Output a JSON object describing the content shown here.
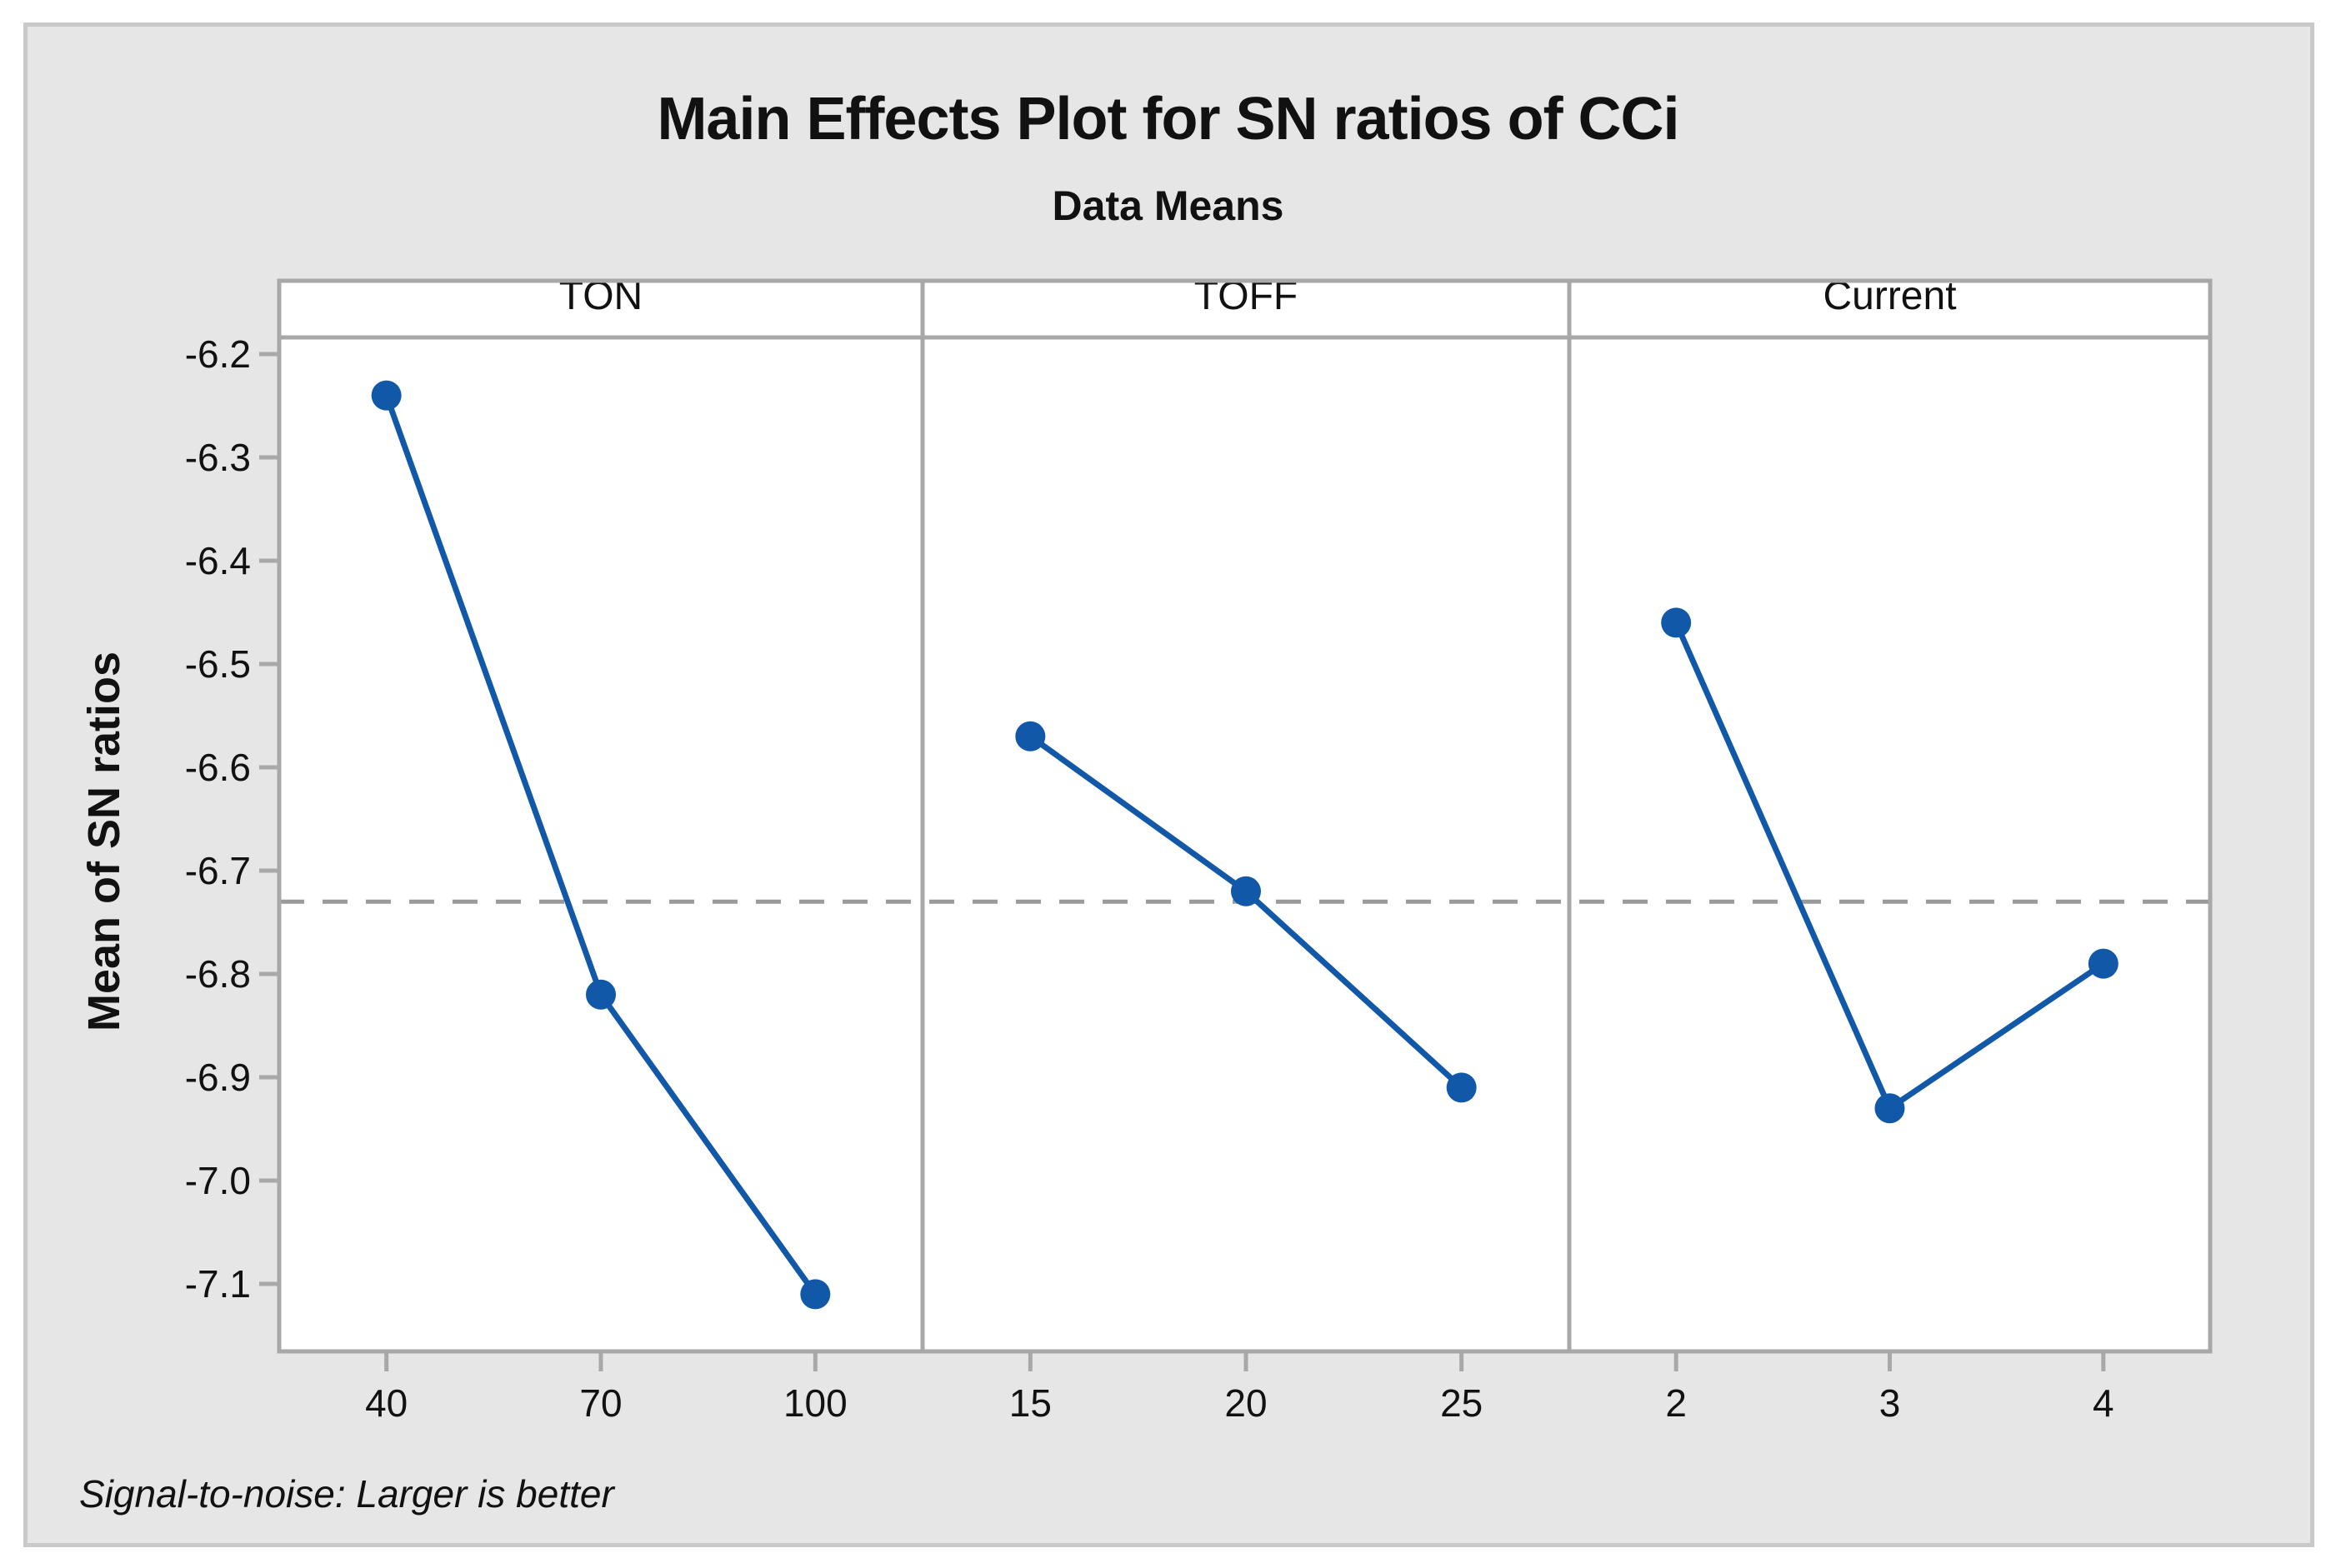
{
  "title": "Main Effects Plot for SN ratios of CCi",
  "subtitle": "Data Means",
  "y_axis_title": "Mean of SN ratios",
  "footnote": "Signal-to-noise: Larger is better",
  "colors": {
    "series": "#1159A8",
    "frame": "#A8A8A8",
    "tick": "#A8A8A8",
    "mean_line": "#9A9A9A",
    "plot_bg": "#FFFFFF",
    "canvas_bg": "#E6E6E6",
    "canvas_border": "#C9C9C9",
    "text": "#111111"
  },
  "chart_data": {
    "type": "line",
    "title": "Main Effects Plot for SN ratios of CCi",
    "subtitle": "Data Means",
    "ylabel": "Mean of SN ratios",
    "ylim": [
      -7.17,
      -6.18
    ],
    "yticks": [
      -6.2,
      -6.3,
      -6.4,
      -6.5,
      -6.6,
      -6.7,
      -6.8,
      -6.9,
      -7.0,
      -7.1
    ],
    "grand_mean": -6.73,
    "grid": false,
    "legend": "none",
    "panels": [
      {
        "label": "TON",
        "categories": [
          "40",
          "70",
          "100"
        ],
        "values": [
          -6.24,
          -6.82,
          -7.11
        ]
      },
      {
        "label": "TOFF",
        "categories": [
          "15",
          "20",
          "25"
        ],
        "values": [
          -6.57,
          -6.72,
          -6.91
        ]
      },
      {
        "label": "Current",
        "categories": [
          "2",
          "3",
          "4"
        ],
        "values": [
          -6.46,
          -6.93,
          -6.79
        ]
      }
    ],
    "annotation": "Signal-to-noise: Larger is better"
  }
}
